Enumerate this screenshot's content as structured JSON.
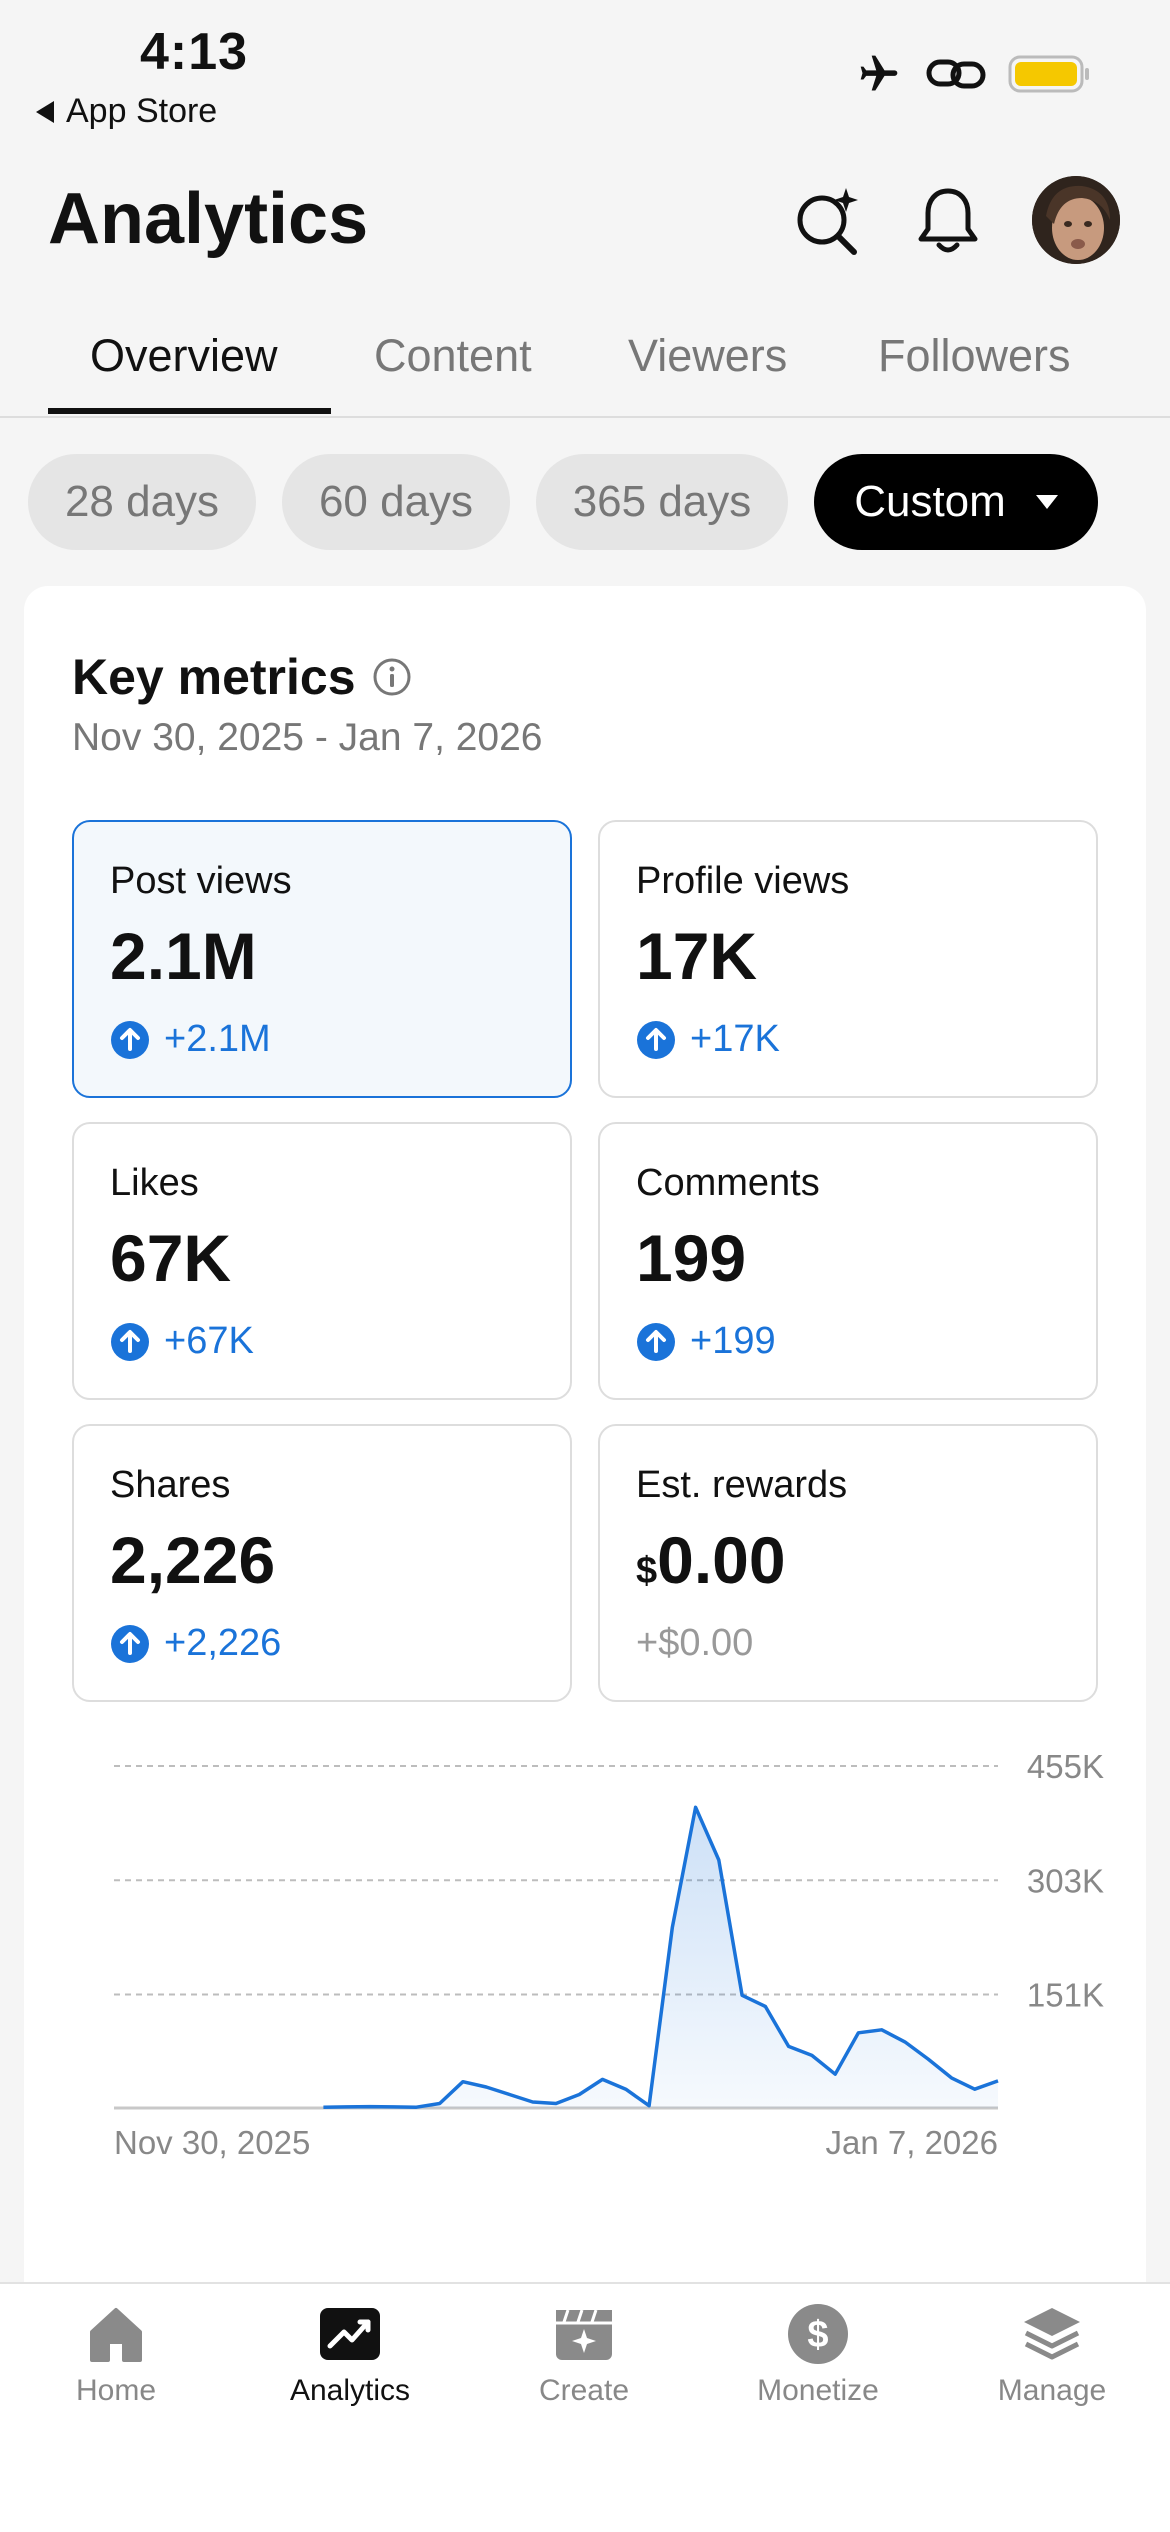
{
  "status": {
    "time": "4:13",
    "back_label": "App Store"
  },
  "header": {
    "title": "Analytics"
  },
  "tabs": [
    {
      "label": "Overview",
      "active": true
    },
    {
      "label": "Content",
      "active": false
    },
    {
      "label": "Viewers",
      "active": false
    },
    {
      "label": "Followers",
      "active": false
    }
  ],
  "ranges": [
    {
      "label": "28 days",
      "active": false
    },
    {
      "label": "60 days",
      "active": false
    },
    {
      "label": "365 days",
      "active": false
    },
    {
      "label": "Custom",
      "active": true
    }
  ],
  "key_metrics": {
    "title": "Key metrics",
    "date_range": "Nov 30, 2025 - Jan 7, 2026",
    "items": [
      {
        "label": "Post views",
        "value": "2.1M",
        "delta": "+2.1M",
        "selected": true
      },
      {
        "label": "Profile views",
        "value": "17K",
        "delta": "+17K"
      },
      {
        "label": "Likes",
        "value": "67K",
        "delta": "+67K"
      },
      {
        "label": "Comments",
        "value": "199",
        "delta": "+199"
      },
      {
        "label": "Shares",
        "value": "2,226",
        "delta": "+2,226"
      },
      {
        "label": "Est. rewards",
        "currency": "$",
        "value": "0.00",
        "delta": "+$0.00"
      }
    ]
  },
  "chart_data": {
    "type": "area",
    "y_ticks": [
      "455K",
      "303K",
      "151K"
    ],
    "x_labels": [
      "Nov 30, 2025",
      "Jan 7, 2026"
    ],
    "ylim": [
      0,
      455000
    ],
    "grid": true,
    "color": "#1a73d9",
    "series": [
      {
        "values": [
          null,
          null,
          null,
          null,
          null,
          null,
          null,
          null,
          null,
          1000,
          1500,
          1800,
          1500,
          1000,
          6000,
          35000,
          28000,
          18000,
          8000,
          6000,
          18000,
          38000,
          25000,
          3000,
          240000,
          400000,
          330000,
          150000,
          135000,
          82000,
          70000,
          45000,
          100000,
          104000,
          88000,
          65000,
          40000,
          25000,
          36000
        ]
      }
    ]
  },
  "nav": [
    {
      "label": "Home",
      "icon": "home-icon",
      "active": false
    },
    {
      "label": "Analytics",
      "icon": "analytics-icon",
      "active": true
    },
    {
      "label": "Create",
      "icon": "create-icon",
      "active": false
    },
    {
      "label": "Monetize",
      "icon": "monetize-icon",
      "active": false
    },
    {
      "label": "Manage",
      "icon": "manage-icon",
      "active": false
    }
  ]
}
